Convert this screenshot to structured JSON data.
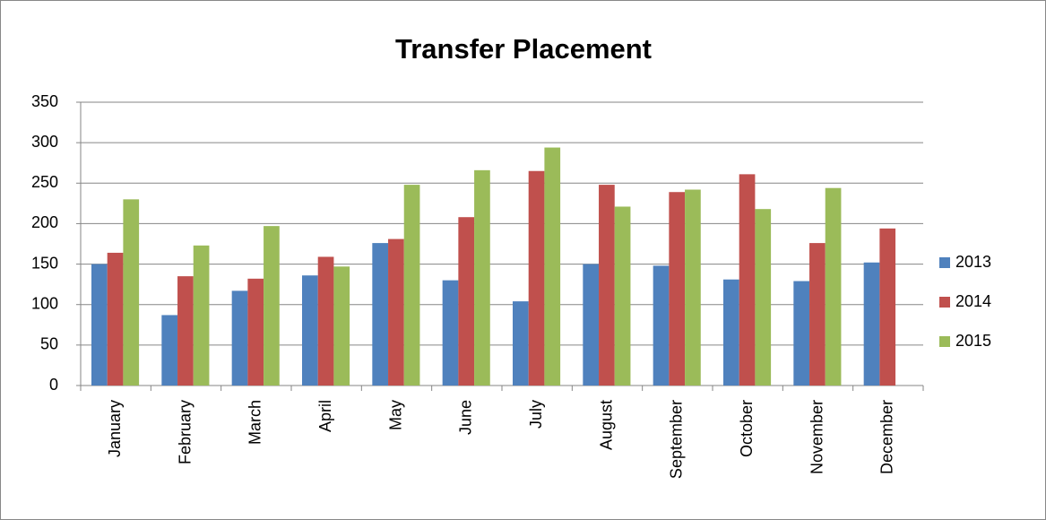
{
  "chart_data": {
    "type": "bar",
    "title": "Transfer Placement",
    "categories": [
      "January",
      "February",
      "March",
      "April",
      "May",
      "June",
      "July",
      "August",
      "September",
      "October",
      "November",
      "December"
    ],
    "series": [
      {
        "name": "2013",
        "color": "#4f81bd",
        "values": [
          150,
          87,
          117,
          136,
          176,
          130,
          104,
          150,
          148,
          131,
          129,
          152
        ]
      },
      {
        "name": "2014",
        "color": "#c0504d",
        "values": [
          164,
          135,
          132,
          159,
          181,
          208,
          265,
          248,
          239,
          261,
          176,
          194
        ]
      },
      {
        "name": "2015",
        "color": "#9bbb59",
        "values": [
          230,
          173,
          197,
          147,
          248,
          266,
          294,
          221,
          242,
          218,
          244,
          null
        ]
      }
    ],
    "ylim": [
      0,
      350
    ],
    "yticks": [
      0,
      50,
      100,
      150,
      200,
      250,
      300,
      350
    ],
    "grid": true,
    "legend": "right"
  }
}
